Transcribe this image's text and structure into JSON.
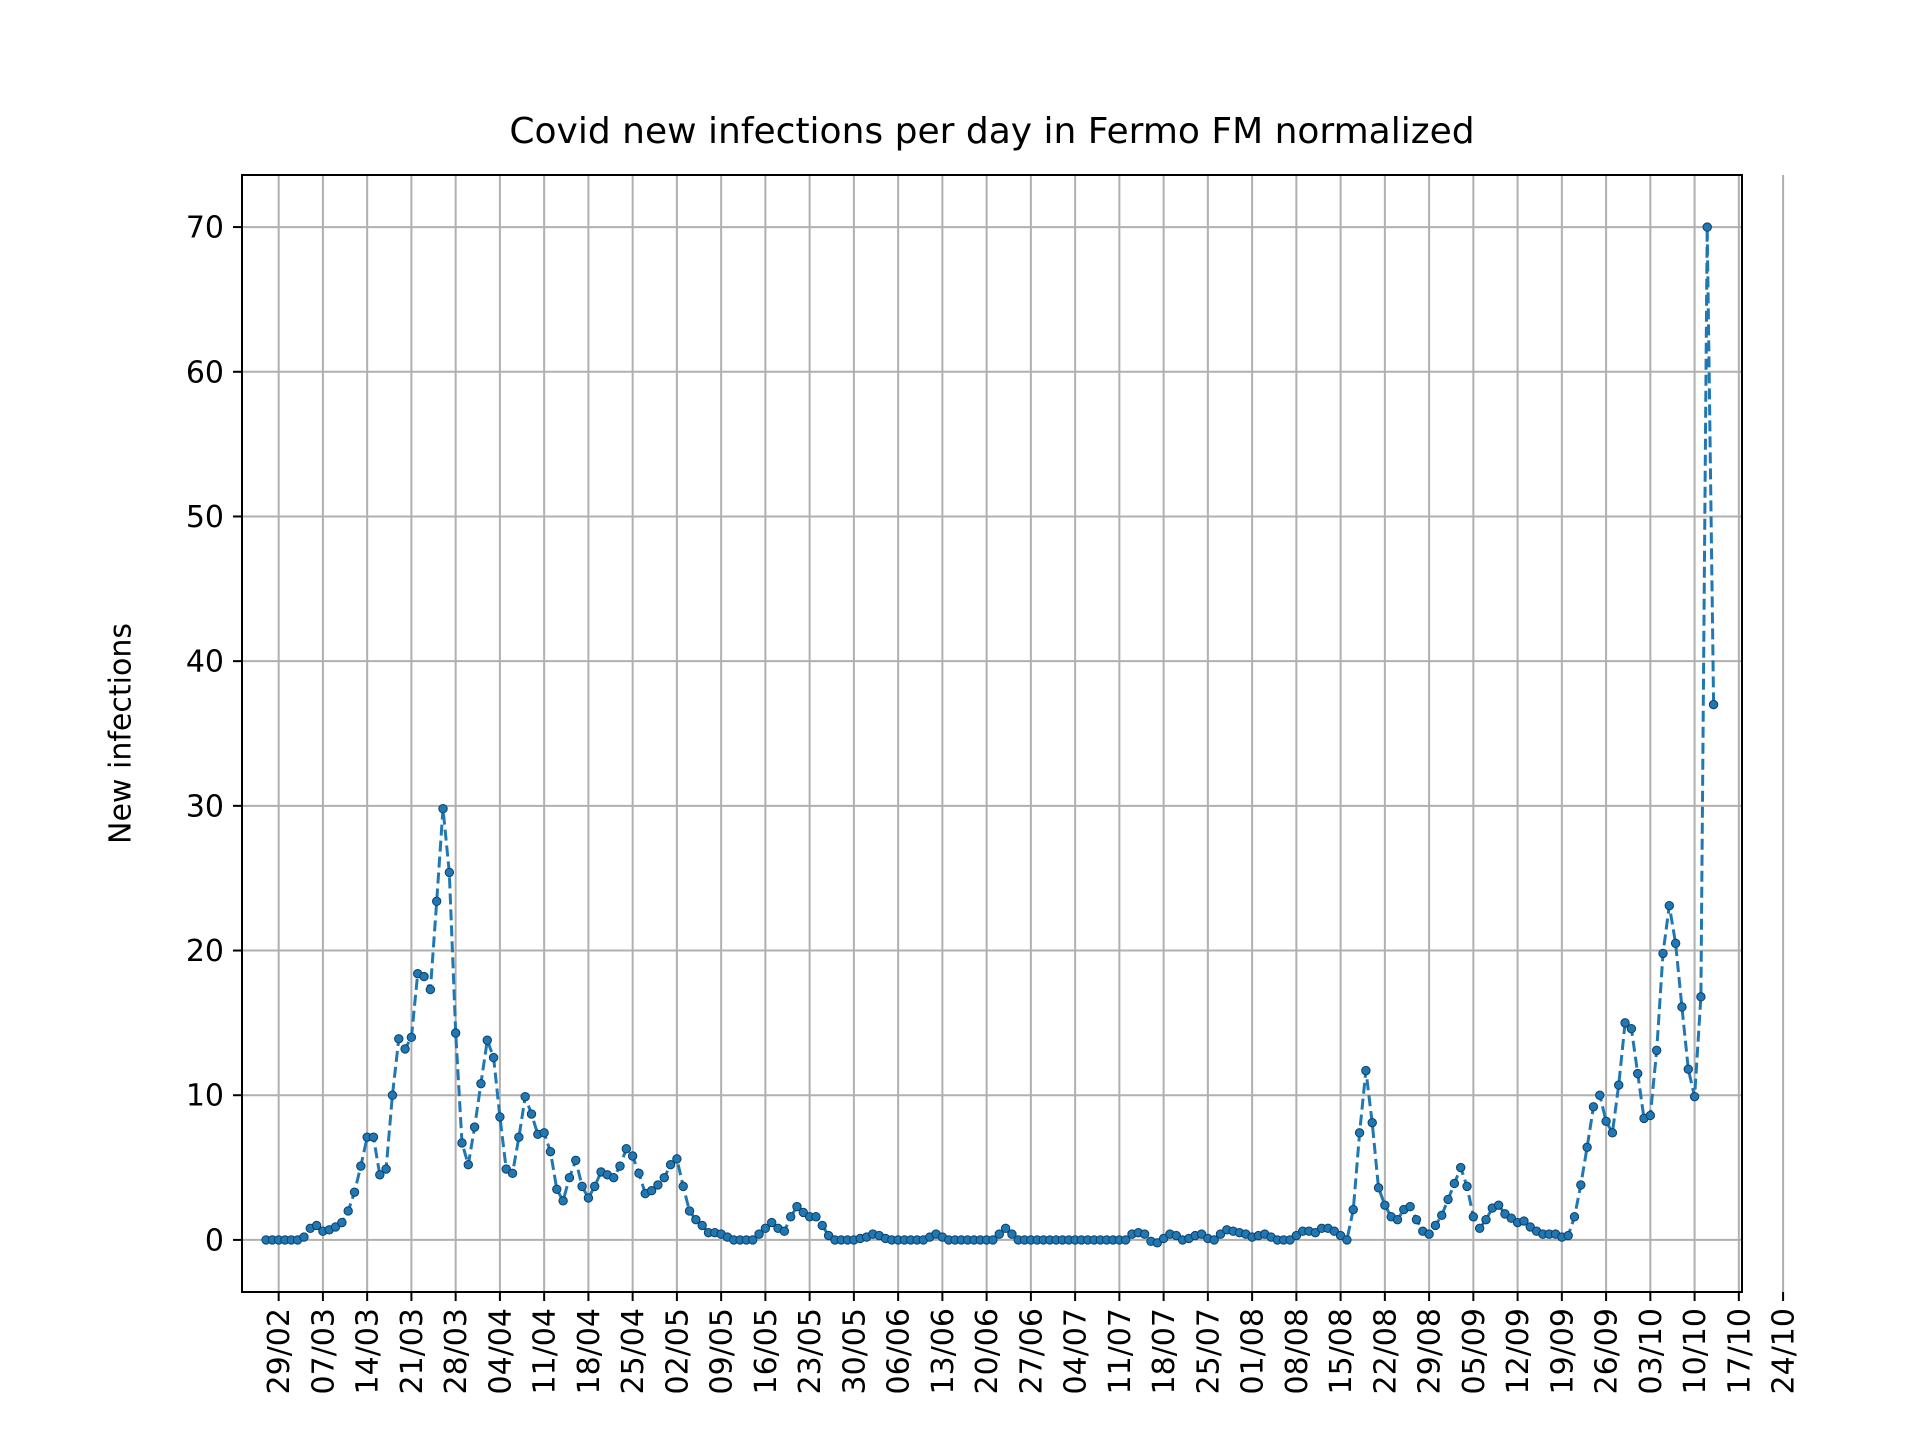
{
  "chart_data": {
    "type": "line",
    "title": "Covid new infections per day in Fermo FM normalized",
    "xlabel": "",
    "ylabel": "New infections",
    "x_start": "27/02",
    "x_tick_labels": [
      "29/02",
      "07/03",
      "14/03",
      "21/03",
      "28/03",
      "04/04",
      "11/04",
      "18/04",
      "25/04",
      "02/05",
      "09/05",
      "16/05",
      "23/05",
      "30/05",
      "06/06",
      "13/06",
      "20/06",
      "27/06",
      "04/07",
      "11/07",
      "18/07",
      "25/07",
      "01/08",
      "08/08",
      "15/08",
      "22/08",
      "29/08",
      "05/09",
      "12/09",
      "19/09",
      "26/09",
      "03/10",
      "10/10",
      "17/10",
      "24/10"
    ],
    "y_ticks": [
      0,
      10,
      20,
      30,
      40,
      50,
      60,
      70
    ],
    "ylim": [
      -3.6,
      73.6
    ],
    "grid": true,
    "line_style": "dashed",
    "marker": "dot",
    "series": [
      {
        "color": "#1f77b4",
        "values": [
          0,
          0,
          0,
          0,
          0,
          0,
          0.2,
          0.8,
          1.0,
          0.6,
          0.7,
          0.9,
          1.2,
          2.0,
          3.3,
          5.1,
          7.1,
          7.1,
          4.5,
          4.9,
          10.0,
          13.9,
          13.2,
          14.0,
          18.4,
          18.2,
          17.3,
          23.4,
          29.8,
          25.4,
          14.3,
          6.7,
          5.2,
          7.8,
          10.8,
          13.8,
          12.6,
          8.5,
          4.9,
          4.6,
          7.1,
          9.9,
          8.7,
          7.3,
          7.4,
          6.1,
          3.5,
          2.7,
          4.3,
          5.5,
          3.7,
          2.9,
          3.7,
          4.7,
          4.5,
          4.3,
          5.1,
          6.3,
          5.8,
          4.6,
          3.2,
          3.4,
          3.8,
          4.3,
          5.2,
          5.6,
          3.7,
          2.0,
          1.4,
          1.0,
          0.5,
          0.5,
          0.4,
          0.2,
          0,
          0,
          0,
          0,
          0.4,
          0.8,
          1.2,
          0.8,
          0.6,
          1.6,
          2.3,
          1.9,
          1.6,
          1.6,
          1.0,
          0.3,
          0,
          0,
          0,
          0,
          0.1,
          0.2,
          0.4,
          0.3,
          0.1,
          0,
          0,
          0,
          0,
          0,
          0,
          0.2,
          0.4,
          0.2,
          0,
          0,
          0,
          0,
          0,
          0,
          0,
          0,
          0.4,
          0.8,
          0.4,
          0,
          0,
          0,
          0,
          0,
          0,
          0,
          0,
          0,
          0,
          0,
          0,
          0,
          0,
          0,
          0,
          0,
          0,
          0.4,
          0.5,
          0.4,
          -0.1,
          -0.2,
          0.1,
          0.4,
          0.3,
          0,
          0.1,
          0.3,
          0.4,
          0.1,
          0,
          0.4,
          0.7,
          0.6,
          0.5,
          0.4,
          0.2,
          0.3,
          0.4,
          0.2,
          0,
          0,
          0,
          0.3,
          0.6,
          0.6,
          0.5,
          0.8,
          0.8,
          0.6,
          0.3,
          0,
          2.1,
          7.4,
          11.7,
          8.1,
          3.6,
          2.4,
          1.6,
          1.4,
          2.1,
          2.3,
          1.4,
          0.6,
          0.4,
          1.0,
          1.7,
          2.8,
          3.9,
          5.0,
          3.7,
          1.6,
          0.8,
          1.4,
          2.2,
          2.4,
          1.8,
          1.5,
          1.2,
          1.3,
          0.9,
          0.6,
          0.4,
          0.4,
          0.4,
          0.2,
          0.3,
          1.6,
          3.8,
          6.4,
          9.2,
          10.0,
          8.2,
          7.4,
          10.7,
          15.0,
          14.6,
          11.5,
          8.4,
          8.6,
          13.1,
          19.8,
          23.1,
          20.5,
          16.1,
          11.8,
          9.9,
          16.8,
          70.0,
          37.0
        ]
      }
    ]
  }
}
